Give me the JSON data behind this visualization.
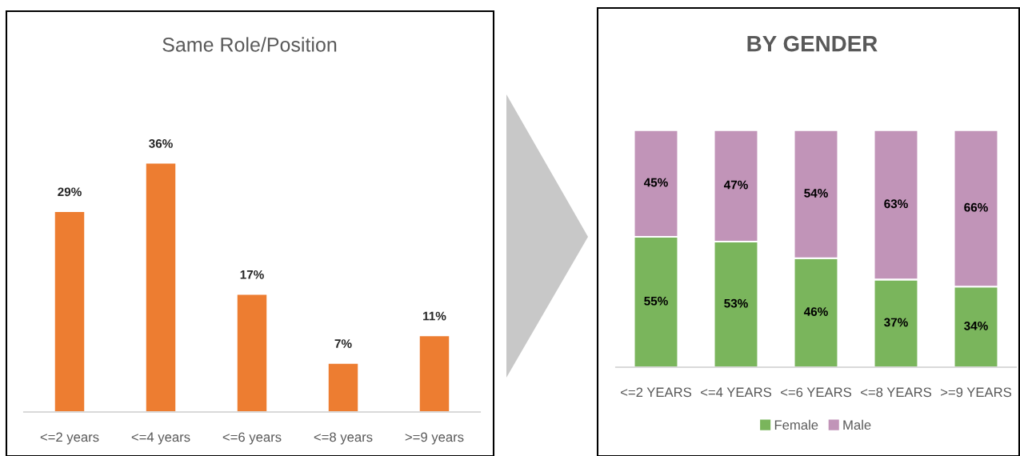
{
  "chart_data": [
    {
      "type": "bar",
      "title": "Same Role/Position",
      "categories": [
        "<=2 years",
        "<=4 years",
        "<=6 years",
        "<=8 years",
        ">=9 years"
      ],
      "values": [
        29,
        36,
        17,
        7,
        11
      ],
      "color": "#ed7d31",
      "value_labels": [
        "29%",
        "36%",
        "17%",
        "7%",
        "11%"
      ],
      "grid": false,
      "legend": false
    },
    {
      "type": "bar",
      "title": "BY GENDER",
      "stacked": true,
      "categories": [
        "<=2 YEARS",
        "<=4 YEARS",
        "<=6 YEARS",
        "<=8 YEARS",
        ">=9 YEARS"
      ],
      "series": [
        {
          "name": "Female",
          "color": "#7ab55c",
          "values": [
            55,
            53,
            46,
            37,
            34
          ],
          "value_labels": [
            "55%",
            "53%",
            "46%",
            "37%",
            "34%"
          ]
        },
        {
          "name": "Male",
          "color": "#c194b8",
          "values": [
            45,
            47,
            54,
            63,
            66
          ],
          "value_labels": [
            "45%",
            "47%",
            "54%",
            "63%",
            "66%"
          ]
        }
      ],
      "grid": false,
      "legend": "bottom"
    }
  ]
}
